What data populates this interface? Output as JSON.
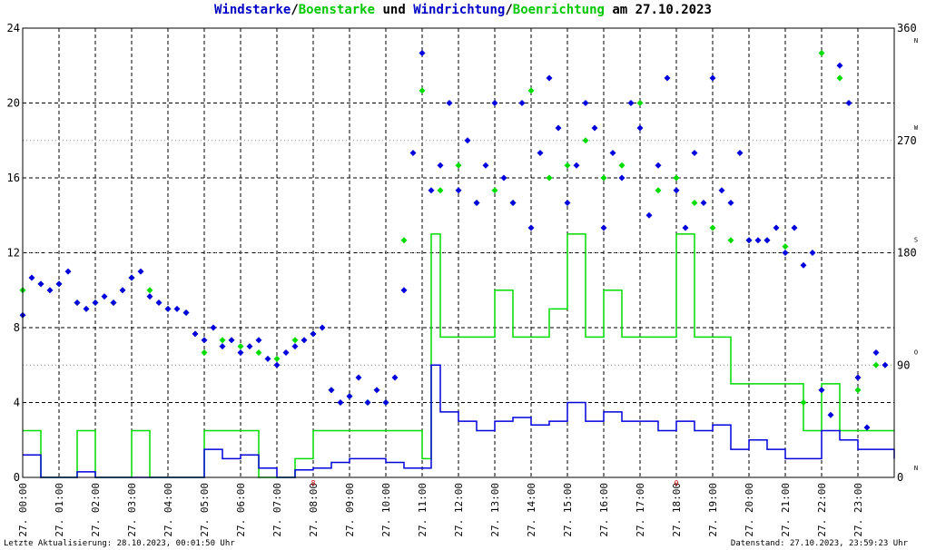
{
  "title": {
    "part1": "Windstarke",
    "sep1": "/",
    "part2": "Boenstarke",
    "part3": " und ",
    "part4": "Windrichtung",
    "sep2": "/",
    "part5": "Boenrichtung",
    "part6": " am 27.10.2023"
  },
  "footer": {
    "last_update": "Letzte Aktualisierung: 28.10.2023, 00:01:50 Uhr",
    "data_status": "Datenstand: 27.10.2023, 23:59:23 Uhr"
  },
  "colors": {
    "wind_speed": "#0000dc",
    "gust": "#00dc00",
    "grid": "#000000",
    "background": "#ffffff",
    "highlight_label": "#c80000"
  },
  "chart_data": {
    "type": "line",
    "title": "Windstarke/Boenstarke und Windrichtung/Boenrichtung am 27.10.2023",
    "x_unit": "hour of day",
    "xlim": [
      0,
      24
    ],
    "x_tick_labels": [
      "27. 00:00",
      "27. 01:00",
      "27. 02:00",
      "27. 03:00",
      "27. 04:00",
      "27. 05:00",
      "27. 06:00",
      "27. 07:00",
      "27. 08:00",
      "27. 09:00",
      "27. 10:00",
      "27. 11:00",
      "27. 12:00",
      "27. 13:00",
      "27. 14:00",
      "27. 15:00",
      "27. 16:00",
      "27. 17:00",
      "27. 18:00",
      "27. 19:00",
      "27. 20:00",
      "27. 21:00",
      "27. 22:00",
      "27. 23:00"
    ],
    "y_left": {
      "ylim": [
        0,
        24
      ],
      "ticks": [
        "0",
        "4",
        "8",
        "12",
        "16",
        "20",
        "24"
      ]
    },
    "y_right": {
      "ylim": [
        0,
        360
      ],
      "ticks": [
        "0",
        "90",
        "180",
        "270",
        "360"
      ],
      "direction_letters": [
        {
          "value": 0,
          "letter": "N"
        },
        {
          "value": 90,
          "letter": "O"
        },
        {
          "value": 180,
          "letter": "S"
        },
        {
          "value": 270,
          "letter": "W"
        },
        {
          "value": 360,
          "letter": "N"
        }
      ]
    },
    "grid": true,
    "markers": [
      {
        "label": "8",
        "x": 8.0
      },
      {
        "label": "0",
        "x": 18.0
      }
    ],
    "series": [
      {
        "name": "Windstarke",
        "style": "line",
        "x": [
          0.0,
          0.5,
          1.0,
          1.5,
          2.0,
          2.5,
          3.0,
          3.5,
          4.0,
          4.5,
          5.0,
          5.5,
          6.0,
          6.5,
          7.0,
          7.5,
          8.0,
          8.5,
          9.0,
          9.5,
          10.0,
          10.5,
          11.0,
          11.25,
          11.5,
          12.0,
          12.5,
          13.0,
          13.5,
          14.0,
          14.5,
          15.0,
          15.5,
          16.0,
          16.5,
          17.0,
          17.5,
          18.0,
          18.5,
          19.0,
          19.5,
          20.0,
          20.5,
          21.0,
          21.5,
          22.0,
          22.5,
          23.0,
          23.5,
          24.0
        ],
        "values": [
          1.2,
          0,
          0,
          0.3,
          0,
          0,
          0,
          0,
          0,
          0,
          1.5,
          1.0,
          1.2,
          0.5,
          0,
          0.4,
          0.5,
          0.8,
          1.0,
          1.0,
          0.8,
          0.5,
          0.5,
          6.0,
          3.5,
          3.0,
          2.5,
          3.0,
          3.2,
          2.8,
          3.0,
          4.0,
          3.0,
          3.5,
          3.0,
          3.0,
          2.5,
          3.0,
          2.5,
          2.8,
          1.5,
          2.0,
          1.5,
          1.0,
          1.0,
          2.5,
          2.0,
          1.5,
          1.5,
          1.0
        ]
      },
      {
        "name": "Boenstarke",
        "style": "line",
        "x": [
          0.0,
          0.5,
          1.0,
          1.5,
          2.0,
          2.5,
          3.0,
          3.5,
          4.0,
          4.5,
          5.0,
          5.5,
          6.0,
          6.5,
          7.0,
          7.5,
          8.0,
          8.5,
          9.0,
          9.5,
          10.0,
          10.5,
          11.0,
          11.25,
          11.5,
          12.0,
          12.5,
          13.0,
          13.5,
          14.0,
          14.5,
          15.0,
          15.5,
          16.0,
          16.5,
          17.0,
          17.5,
          18.0,
          18.5,
          19.0,
          19.5,
          20.0,
          20.5,
          21.0,
          21.5,
          22.0,
          22.5,
          23.0,
          23.5,
          24.0
        ],
        "values": [
          2.5,
          0,
          0,
          2.5,
          0,
          0,
          2.5,
          0,
          0,
          0,
          2.5,
          2.5,
          2.5,
          0,
          0,
          1.0,
          2.5,
          2.5,
          2.5,
          2.5,
          2.5,
          2.5,
          1.0,
          13.0,
          7.5,
          7.5,
          7.5,
          10.0,
          7.5,
          7.5,
          9.0,
          13.0,
          7.5,
          10.0,
          7.5,
          7.5,
          7.5,
          13.0,
          7.5,
          7.5,
          5.0,
          5.0,
          5.0,
          5.0,
          2.5,
          5.0,
          2.5,
          2.5,
          2.5,
          2.5
        ]
      },
      {
        "name": "Windrichtung",
        "style": "scatter",
        "x": [
          0.0,
          0.25,
          0.5,
          0.75,
          1.0,
          1.25,
          1.5,
          1.75,
          2.0,
          2.25,
          2.5,
          2.75,
          3.0,
          3.25,
          3.5,
          3.75,
          4.0,
          4.25,
          4.5,
          4.75,
          5.0,
          5.25,
          5.5,
          5.75,
          6.0,
          6.25,
          6.5,
          6.75,
          7.0,
          7.25,
          7.5,
          7.75,
          8.0,
          8.25,
          8.5,
          8.75,
          9.0,
          9.25,
          9.5,
          9.75,
          10.0,
          10.25,
          10.5,
          10.75,
          11.0,
          11.25,
          11.5,
          11.75,
          12.0,
          12.25,
          12.5,
          12.75,
          13.0,
          13.25,
          13.5,
          13.75,
          14.0,
          14.25,
          14.5,
          14.75,
          15.0,
          15.25,
          15.5,
          15.75,
          16.0,
          16.25,
          16.5,
          16.75,
          17.0,
          17.25,
          17.5,
          17.75,
          18.0,
          18.25,
          18.5,
          18.75,
          19.0,
          19.25,
          19.5,
          19.75,
          20.0,
          20.25,
          20.5,
          20.75,
          21.0,
          21.25,
          21.5,
          21.75,
          22.0,
          22.25,
          22.5,
          22.75,
          23.0,
          23.25,
          23.5,
          23.75
        ],
        "values": [
          130,
          160,
          155,
          150,
          155,
          165,
          140,
          135,
          140,
          145,
          140,
          150,
          160,
          165,
          145,
          140,
          135,
          135,
          132,
          115,
          110,
          120,
          105,
          110,
          100,
          105,
          110,
          95,
          90,
          100,
          105,
          110,
          115,
          120,
          70,
          60,
          65,
          80,
          60,
          70,
          60,
          80,
          150,
          260,
          340,
          230,
          250,
          300,
          230,
          270,
          220,
          250,
          300,
          240,
          220,
          300,
          200,
          260,
          320,
          280,
          220,
          250,
          300,
          280,
          200,
          260,
          240,
          300,
          280,
          210,
          250,
          320,
          230,
          200,
          260,
          220,
          320,
          230,
          220,
          260,
          190,
          190,
          190,
          200,
          180,
          200,
          170,
          180,
          70,
          50,
          330,
          300,
          80,
          40,
          100,
          90
        ]
      },
      {
        "name": "Boenrichtung",
        "style": "scatter",
        "x": [
          0.0,
          0.5,
          1.0,
          1.5,
          2.0,
          2.5,
          3.0,
          3.5,
          4.0,
          4.5,
          5.0,
          5.5,
          6.0,
          6.5,
          7.0,
          7.5,
          8.0,
          8.5,
          9.0,
          9.5,
          10.0,
          10.5,
          11.0,
          11.5,
          12.0,
          12.5,
          13.0,
          13.5,
          14.0,
          14.5,
          15.0,
          15.5,
          16.0,
          16.5,
          17.0,
          17.5,
          18.0,
          18.5,
          19.0,
          19.5,
          20.0,
          20.5,
          21.0,
          21.5,
          22.0,
          22.5,
          23.0,
          23.5
        ],
        "values": [
          150,
          155,
          155,
          140,
          140,
          140,
          160,
          150,
          135,
          132,
          100,
          110,
          105,
          100,
          95,
          110,
          115,
          70,
          65,
          60,
          60,
          190,
          310,
          230,
          250,
          220,
          230,
          220,
          310,
          240,
          250,
          270,
          240,
          250,
          300,
          230,
          240,
          220,
          200,
          190,
          190,
          190,
          185,
          60,
          340,
          320,
          70,
          90
        ]
      }
    ]
  }
}
